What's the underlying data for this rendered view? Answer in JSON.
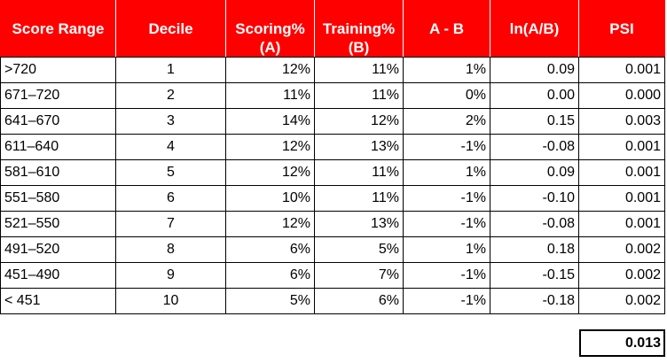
{
  "table": {
    "headers": [
      "Score Range",
      "Decile",
      "Scoring%\n(A)",
      "Training%\n(B)",
      "A - B",
      "ln(A/B)",
      "PSI"
    ],
    "rows": [
      [
        ">720",
        "1",
        "12%",
        "11%",
        "1%",
        "0.09",
        "0.001"
      ],
      [
        "671–720",
        "2",
        "11%",
        "11%",
        "0%",
        "0.00",
        "0.000"
      ],
      [
        "641–670",
        "3",
        "14%",
        "12%",
        "2%",
        "0.15",
        "0.003"
      ],
      [
        "611–640",
        "4",
        "12%",
        "13%",
        "-1%",
        "-0.08",
        "0.001"
      ],
      [
        "581–610",
        "5",
        "12%",
        "11%",
        "1%",
        "0.09",
        "0.001"
      ],
      [
        "551–580",
        "6",
        "10%",
        "11%",
        "-1%",
        "-0.10",
        "0.001"
      ],
      [
        "521–550",
        "7",
        "12%",
        "13%",
        "-1%",
        "-0.08",
        "0.001"
      ],
      [
        "491–520",
        "8",
        "6%",
        "5%",
        "1%",
        "0.18",
        "0.002"
      ],
      [
        "451–490",
        "9",
        "6%",
        "7%",
        "-1%",
        "-0.15",
        "0.002"
      ],
      [
        "< 451",
        "10",
        "5%",
        "6%",
        "-1%",
        "-0.18",
        "0.002"
      ]
    ],
    "total_psi": "0.013"
  },
  "colors": {
    "header_background": "#ff0000",
    "header_text": "#ffffff",
    "border": "#000000"
  }
}
